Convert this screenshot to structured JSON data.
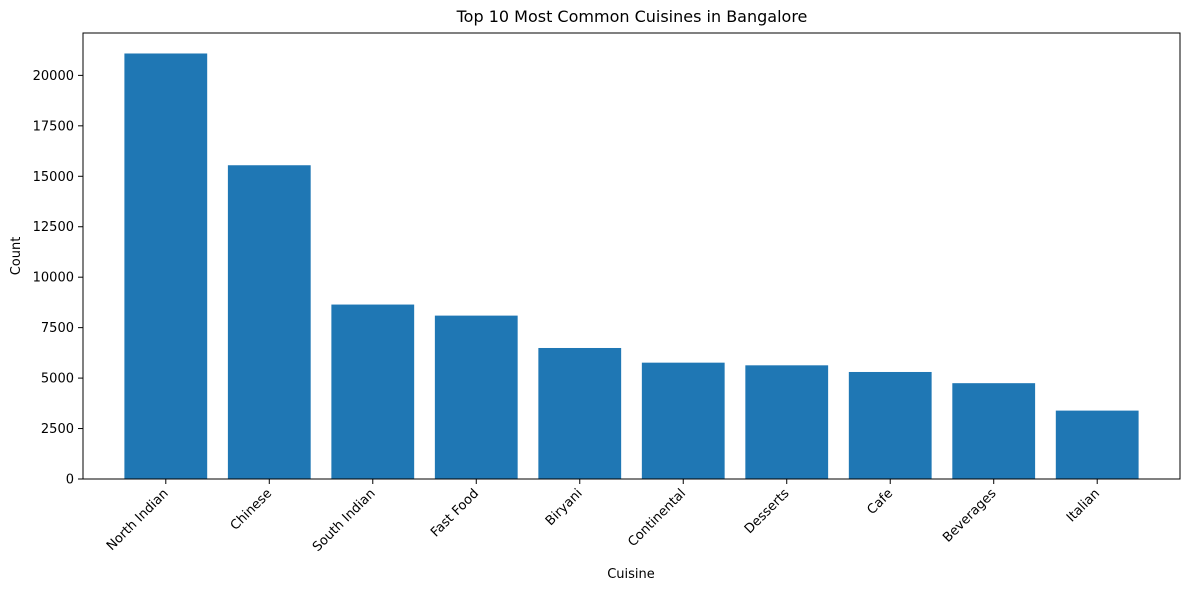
{
  "chart_data": {
    "type": "bar",
    "title": "Top 10 Most Common Cuisines in Bangalore",
    "xlabel": "Cuisine",
    "ylabel": "Count",
    "categories": [
      "North Indian",
      "Chinese",
      "South Indian",
      "Fast Food",
      "Biryani",
      "Continental",
      "Desserts",
      "Cafe",
      "Beverages",
      "Italian"
    ],
    "values": [
      21085,
      15547,
      8644,
      8096,
      6492,
      5765,
      5633,
      5303,
      4748,
      3389
    ],
    "ylim": [
      0,
      22100
    ],
    "yticks": [
      0,
      2500,
      5000,
      7500,
      10000,
      12500,
      15000,
      17500,
      20000
    ],
    "ytick_labels": [
      "0",
      "2500",
      "5000",
      "7500",
      "10000",
      "12500",
      "15000",
      "17500",
      "20000"
    ],
    "bar_color": "#1f77b4",
    "grid": false,
    "legend": "none"
  }
}
